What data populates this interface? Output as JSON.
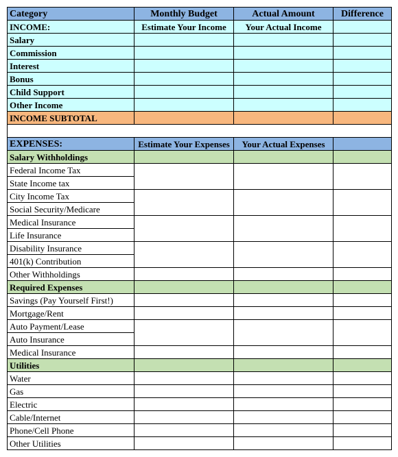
{
  "colors": {
    "header_blue": "#8db4e2",
    "cyan": "#ccffff",
    "orange": "#f8b77e",
    "green": "#c4e0b2",
    "white": "#ffffff"
  },
  "columns": {
    "category": "Category",
    "monthly_budget": "Monthly Budget",
    "actual_amount": "Actual Amount",
    "difference": "Difference"
  },
  "income": {
    "title": "INCOME:",
    "estimate_label": "Estimate Your Income",
    "actual_label": "Your Actual Income",
    "rows": [
      "Salary",
      "Commission",
      "Interest",
      "Bonus",
      "Child Support",
      "Other Income"
    ],
    "subtotal_label": "INCOME SUBTOTAL"
  },
  "expenses": {
    "title": "EXPENSES:",
    "estimate_label": "Estimate Your Expenses",
    "actual_label": "Your Actual Expenses",
    "sections": [
      {
        "heading": "Salary Withholdings",
        "rows": [
          [
            "Federal Income Tax",
            "State Income tax"
          ],
          [
            "City Income Tax",
            "Social Security/Medicare"
          ],
          [
            "Medical Insurance",
            "Life Insurance"
          ],
          [
            "Disability Insurance",
            "401(k) Contribution"
          ],
          [
            "Other Withholdings"
          ]
        ]
      },
      {
        "heading": "Required Expenses",
        "rows": [
          [
            "Savings (Pay Yourself First!)"
          ],
          [
            "Mortgage/Rent"
          ],
          [
            "Auto Payment/Lease",
            "Auto Insurance"
          ],
          [
            "Medical Insurance"
          ]
        ]
      },
      {
        "heading": "Utilities",
        "rows": [
          [
            "Water"
          ],
          [
            "Gas"
          ],
          [
            "Electric"
          ],
          [
            "Cable/Internet"
          ],
          [
            "Phone/Cell Phone"
          ],
          [
            "Other Utilities"
          ]
        ]
      }
    ]
  }
}
